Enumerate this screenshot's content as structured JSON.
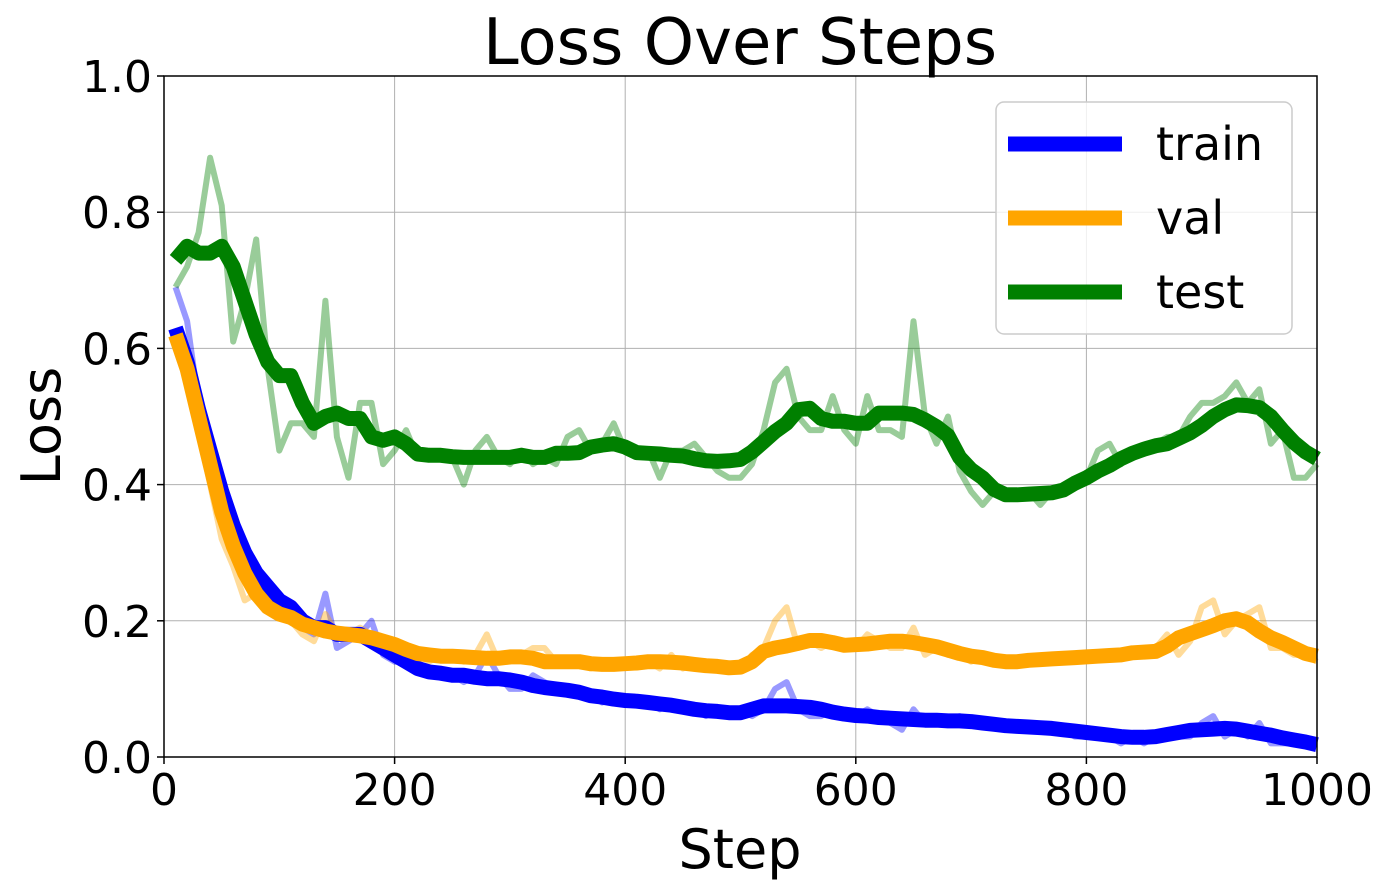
{
  "chart_data": {
    "type": "line",
    "title": "Loss Over Steps",
    "xlabel": "Step",
    "ylabel": "Loss",
    "xlim": [
      0,
      1000
    ],
    "ylim": [
      0.0,
      1.0
    ],
    "grid": true,
    "legend_position": "top-right",
    "x": [
      10,
      20,
      30,
      40,
      50,
      60,
      70,
      80,
      90,
      100,
      110,
      120,
      130,
      140,
      150,
      160,
      170,
      180,
      190,
      200,
      210,
      220,
      230,
      240,
      250,
      260,
      270,
      280,
      290,
      300,
      310,
      320,
      330,
      340,
      350,
      360,
      370,
      380,
      390,
      400,
      410,
      420,
      430,
      440,
      450,
      460,
      470,
      480,
      490,
      500,
      510,
      520,
      530,
      540,
      550,
      560,
      570,
      580,
      590,
      600,
      610,
      620,
      630,
      640,
      650,
      660,
      670,
      680,
      690,
      700,
      710,
      720,
      730,
      740,
      750,
      760,
      770,
      780,
      790,
      800,
      810,
      820,
      830,
      840,
      850,
      860,
      870,
      880,
      890,
      900,
      910,
      920,
      930,
      940,
      950,
      960,
      970,
      980,
      990,
      1000
    ],
    "series": [
      {
        "name": "train",
        "color": "#0000ff",
        "raw": [
          0.69,
          0.64,
          0.52,
          0.42,
          0.35,
          0.3,
          0.27,
          0.28,
          0.24,
          0.22,
          0.22,
          0.19,
          0.18,
          0.24,
          0.16,
          0.17,
          0.18,
          0.2,
          0.15,
          0.14,
          0.14,
          0.13,
          0.12,
          0.12,
          0.12,
          0.11,
          0.12,
          0.15,
          0.12,
          0.1,
          0.1,
          0.12,
          0.11,
          0.1,
          0.1,
          0.09,
          0.09,
          0.08,
          0.09,
          0.08,
          0.08,
          0.08,
          0.07,
          0.08,
          0.07,
          0.07,
          0.06,
          0.07,
          0.06,
          0.07,
          0.06,
          0.07,
          0.1,
          0.11,
          0.07,
          0.06,
          0.06,
          0.07,
          0.06,
          0.06,
          0.07,
          0.06,
          0.05,
          0.04,
          0.07,
          0.05,
          0.05,
          0.05,
          0.06,
          0.05,
          0.05,
          0.05,
          0.04,
          0.04,
          0.04,
          0.04,
          0.04,
          0.04,
          0.03,
          0.03,
          0.03,
          0.03,
          0.02,
          0.03,
          0.02,
          0.03,
          0.03,
          0.03,
          0.03,
          0.05,
          0.06,
          0.03,
          0.04,
          0.03,
          0.05,
          0.02,
          0.02,
          0.02,
          0.02,
          0.02
        ],
        "smoothed": [
          0.63,
          0.58,
          0.51,
          0.45,
          0.39,
          0.34,
          0.3,
          0.27,
          0.25,
          0.23,
          0.22,
          0.2,
          0.19,
          0.19,
          0.18,
          0.18,
          0.18,
          0.17,
          0.16,
          0.15,
          0.14,
          0.13,
          0.125,
          0.123,
          0.12,
          0.12,
          0.117,
          0.115,
          0.115,
          0.113,
          0.11,
          0.105,
          0.102,
          0.1,
          0.098,
          0.095,
          0.09,
          0.088,
          0.085,
          0.083,
          0.082,
          0.08,
          0.078,
          0.076,
          0.073,
          0.07,
          0.068,
          0.067,
          0.065,
          0.065,
          0.07,
          0.075,
          0.075,
          0.075,
          0.074,
          0.073,
          0.07,
          0.066,
          0.063,
          0.061,
          0.06,
          0.058,
          0.057,
          0.056,
          0.055,
          0.054,
          0.054,
          0.053,
          0.053,
          0.052,
          0.05,
          0.048,
          0.046,
          0.045,
          0.044,
          0.043,
          0.042,
          0.04,
          0.038,
          0.036,
          0.034,
          0.032,
          0.03,
          0.029,
          0.029,
          0.03,
          0.033,
          0.036,
          0.039,
          0.04,
          0.041,
          0.042,
          0.041,
          0.038,
          0.035,
          0.032,
          0.028,
          0.025,
          0.022,
          0.018
        ]
      },
      {
        "name": "val",
        "color": "#ffa500",
        "raw": [
          0.6,
          0.56,
          0.48,
          0.4,
          0.32,
          0.28,
          0.23,
          0.24,
          0.23,
          0.21,
          0.2,
          0.18,
          0.17,
          0.21,
          0.18,
          0.18,
          0.19,
          0.18,
          0.17,
          0.16,
          0.16,
          0.15,
          0.14,
          0.15,
          0.15,
          0.14,
          0.15,
          0.18,
          0.14,
          0.14,
          0.15,
          0.16,
          0.16,
          0.14,
          0.14,
          0.14,
          0.13,
          0.14,
          0.13,
          0.14,
          0.14,
          0.14,
          0.13,
          0.15,
          0.13,
          0.14,
          0.13,
          0.13,
          0.13,
          0.13,
          0.15,
          0.16,
          0.2,
          0.22,
          0.16,
          0.17,
          0.16,
          0.17,
          0.16,
          0.16,
          0.18,
          0.17,
          0.16,
          0.16,
          0.19,
          0.15,
          0.16,
          0.15,
          0.15,
          0.14,
          0.15,
          0.14,
          0.14,
          0.14,
          0.14,
          0.14,
          0.15,
          0.15,
          0.15,
          0.15,
          0.15,
          0.15,
          0.15,
          0.15,
          0.16,
          0.16,
          0.18,
          0.15,
          0.17,
          0.22,
          0.23,
          0.18,
          0.2,
          0.21,
          0.22,
          0.16,
          0.16,
          0.15,
          0.15,
          0.14
        ],
        "smoothed": [
          0.62,
          0.57,
          0.5,
          0.43,
          0.36,
          0.31,
          0.27,
          0.24,
          0.22,
          0.21,
          0.205,
          0.195,
          0.19,
          0.185,
          0.182,
          0.18,
          0.178,
          0.175,
          0.17,
          0.165,
          0.158,
          0.152,
          0.15,
          0.148,
          0.148,
          0.147,
          0.146,
          0.145,
          0.145,
          0.147,
          0.147,
          0.145,
          0.14,
          0.14,
          0.14,
          0.14,
          0.137,
          0.136,
          0.136,
          0.137,
          0.138,
          0.14,
          0.14,
          0.139,
          0.138,
          0.136,
          0.134,
          0.133,
          0.131,
          0.132,
          0.14,
          0.155,
          0.16,
          0.163,
          0.167,
          0.171,
          0.171,
          0.168,
          0.164,
          0.165,
          0.166,
          0.168,
          0.17,
          0.17,
          0.168,
          0.165,
          0.162,
          0.157,
          0.152,
          0.148,
          0.146,
          0.142,
          0.14,
          0.14,
          0.142,
          0.143,
          0.144,
          0.145,
          0.146,
          0.147,
          0.148,
          0.149,
          0.15,
          0.153,
          0.154,
          0.155,
          0.163,
          0.175,
          0.181,
          0.187,
          0.193,
          0.2,
          0.203,
          0.197,
          0.185,
          0.175,
          0.168,
          0.16,
          0.152,
          0.148
        ]
      },
      {
        "name": "test",
        "color": "#008000",
        "raw": [
          0.69,
          0.72,
          0.77,
          0.88,
          0.81,
          0.61,
          0.67,
          0.76,
          0.57,
          0.45,
          0.49,
          0.49,
          0.47,
          0.67,
          0.47,
          0.41,
          0.52,
          0.52,
          0.43,
          0.45,
          0.48,
          0.44,
          0.44,
          0.44,
          0.44,
          0.4,
          0.45,
          0.47,
          0.44,
          0.43,
          0.45,
          0.43,
          0.44,
          0.43,
          0.47,
          0.48,
          0.45,
          0.46,
          0.49,
          0.45,
          0.45,
          0.45,
          0.41,
          0.45,
          0.45,
          0.46,
          0.44,
          0.42,
          0.41,
          0.41,
          0.43,
          0.48,
          0.55,
          0.57,
          0.5,
          0.48,
          0.48,
          0.53,
          0.48,
          0.46,
          0.53,
          0.48,
          0.48,
          0.47,
          0.64,
          0.5,
          0.46,
          0.5,
          0.42,
          0.39,
          0.37,
          0.39,
          0.39,
          0.38,
          0.39,
          0.37,
          0.39,
          0.39,
          0.4,
          0.41,
          0.45,
          0.46,
          0.43,
          0.45,
          0.45,
          0.46,
          0.47,
          0.47,
          0.5,
          0.52,
          0.52,
          0.53,
          0.55,
          0.52,
          0.54,
          0.46,
          0.48,
          0.41,
          0.41,
          0.43
        ],
        "smoothed": [
          0.73,
          0.75,
          0.74,
          0.74,
          0.75,
          0.72,
          0.67,
          0.62,
          0.58,
          0.56,
          0.56,
          0.52,
          0.49,
          0.5,
          0.505,
          0.497,
          0.497,
          0.47,
          0.465,
          0.47,
          0.46,
          0.445,
          0.443,
          0.443,
          0.441,
          0.44,
          0.44,
          0.44,
          0.44,
          0.44,
          0.443,
          0.44,
          0.44,
          0.446,
          0.446,
          0.447,
          0.455,
          0.458,
          0.46,
          0.455,
          0.447,
          0.446,
          0.445,
          0.443,
          0.442,
          0.438,
          0.435,
          0.434,
          0.435,
          0.437,
          0.448,
          0.463,
          0.478,
          0.49,
          0.51,
          0.512,
          0.497,
          0.493,
          0.493,
          0.49,
          0.49,
          0.505,
          0.505,
          0.505,
          0.503,
          0.495,
          0.485,
          0.472,
          0.44,
          0.422,
          0.41,
          0.393,
          0.385,
          0.385,
          0.386,
          0.387,
          0.388,
          0.392,
          0.402,
          0.41,
          0.42,
          0.428,
          0.438,
          0.446,
          0.452,
          0.457,
          0.46,
          0.468,
          0.476,
          0.487,
          0.5,
          0.51,
          0.517,
          0.516,
          0.513,
          0.5,
          0.48,
          0.462,
          0.448,
          0.438
        ]
      }
    ],
    "xticks": [
      "0",
      "200",
      "400",
      "600",
      "800",
      "1000"
    ],
    "yticks": [
      "0.0",
      "0.2",
      "0.4",
      "0.6",
      "0.8",
      "1.0"
    ]
  }
}
